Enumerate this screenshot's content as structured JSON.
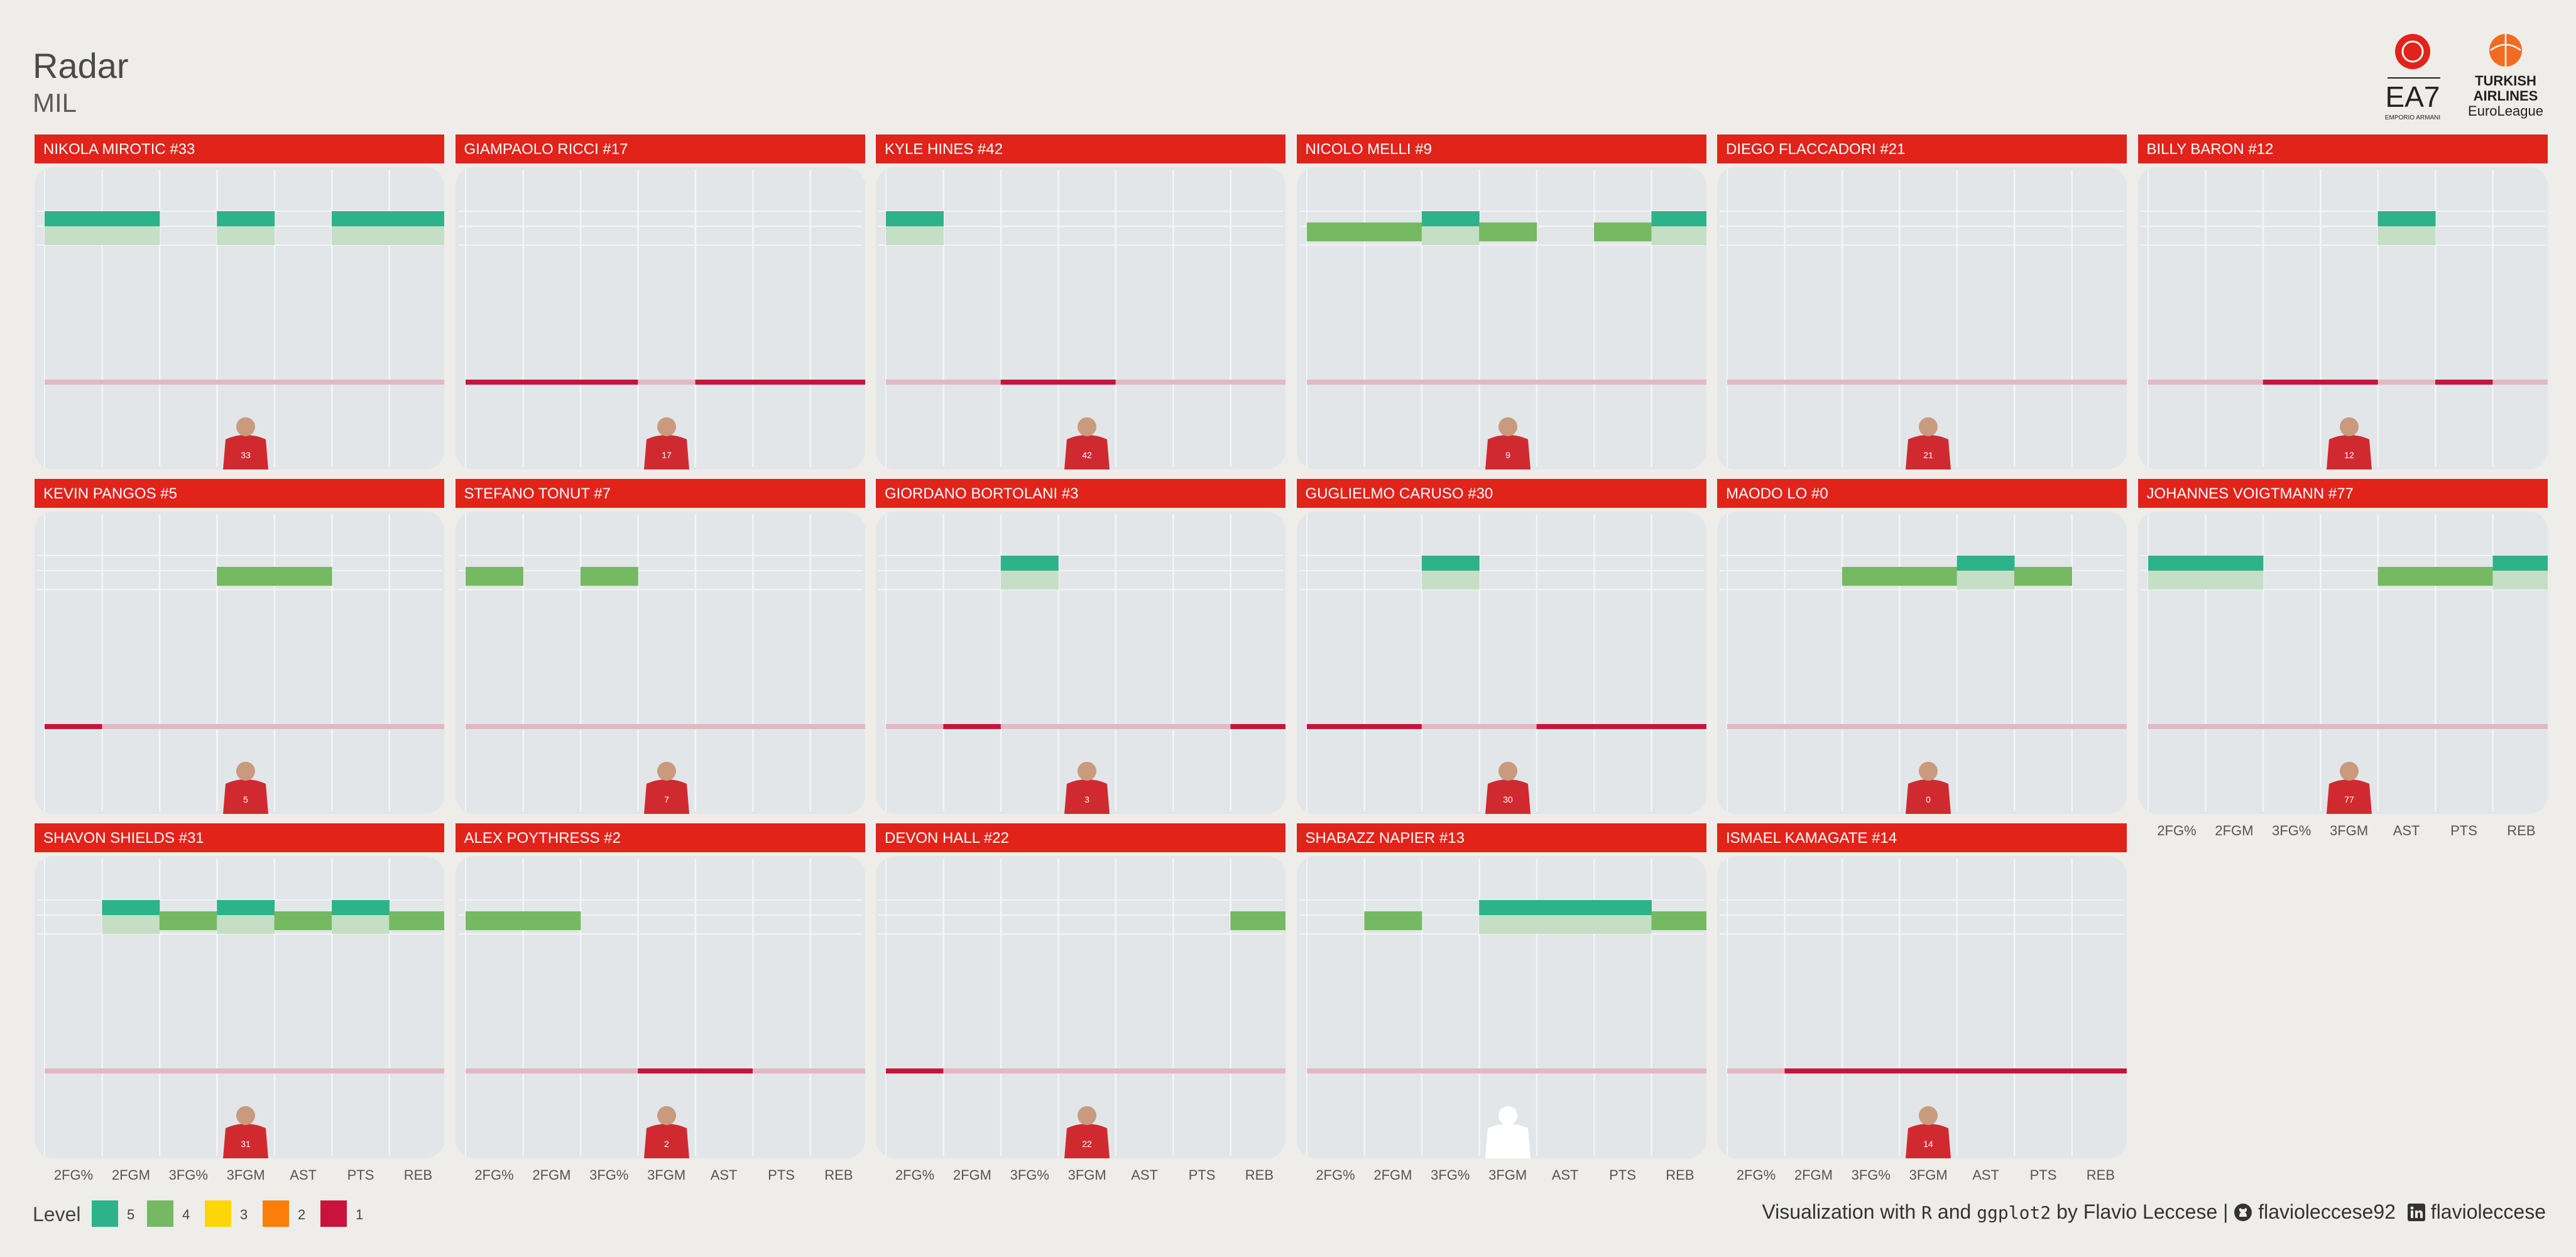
{
  "header": {
    "title": "Radar",
    "subtitle": "MIL"
  },
  "logos": {
    "team_logo_text": "EA7",
    "team_logo_subtext": "EMPORIO ARMANI",
    "league_line1": "TURKISH",
    "league_line2": "AIRLINES",
    "league_line3": "EuroLeague",
    "team_color": "#e2231a",
    "league_color": "#f26b21"
  },
  "colors": {
    "strip": "#e2231a",
    "panel_bg": "#e2e6e8",
    "level_5": "#2db38a",
    "level_4": "#76b963",
    "level_3": "#fdd60a",
    "level_2": "#fb7d0a",
    "level_1": "#c8143c",
    "faded_green": "#c4dfc5",
    "faded_red": "#e3b8c3"
  },
  "chart_data": {
    "type": "heatmap",
    "metrics": [
      "2FG%",
      "2FGM",
      "3FG%",
      "3FGM",
      "AST",
      "PTS",
      "REB"
    ],
    "levels": [
      5,
      4,
      3,
      2,
      1
    ],
    "legend_title": "Level",
    "players": [
      {
        "name": "NIKOLA MIROTIC #33",
        "number": "33",
        "levels": [
          5,
          5,
          null,
          5,
          null,
          5,
          5
        ]
      },
      {
        "name": "GIAMPAOLO RICCI #17",
        "number": "17",
        "levels": [
          1,
          1,
          1,
          null,
          1,
          1,
          1
        ]
      },
      {
        "name": "KYLE HINES #42",
        "number": "42",
        "levels": [
          5,
          null,
          1,
          1,
          null,
          null,
          null
        ]
      },
      {
        "name": "NICOLO MELLI #9",
        "number": "9",
        "levels": [
          4,
          4,
          5,
          4,
          null,
          4,
          5
        ]
      },
      {
        "name": "DIEGO FLACCADORI #21",
        "number": "21",
        "levels": [
          null,
          null,
          null,
          null,
          null,
          null,
          null
        ]
      },
      {
        "name": "BILLY BARON #12",
        "number": "12",
        "levels": [
          null,
          null,
          1,
          1,
          5,
          1,
          null
        ]
      },
      {
        "name": "KEVIN PANGOS #5",
        "number": "5",
        "levels": [
          1,
          null,
          null,
          4,
          4,
          null,
          null
        ]
      },
      {
        "name": "STEFANO TONUT #7",
        "number": "7",
        "levels": [
          4,
          null,
          4,
          null,
          null,
          null,
          null
        ]
      },
      {
        "name": "GIORDANO BORTOLANI #3",
        "number": "3",
        "levels": [
          null,
          1,
          5,
          null,
          null,
          null,
          1
        ]
      },
      {
        "name": "GUGLIELMO CARUSO #30",
        "number": "30",
        "levels": [
          1,
          1,
          5,
          null,
          1,
          1,
          1
        ]
      },
      {
        "name": "MAODO LO #0",
        "number": "0",
        "levels": [
          null,
          null,
          4,
          4,
          5,
          4,
          null
        ]
      },
      {
        "name": "JOHANNES VOIGTMANN #77",
        "number": "77",
        "levels": [
          5,
          5,
          null,
          null,
          4,
          4,
          5
        ]
      },
      {
        "name": "SHAVON SHIELDS #31",
        "number": "31",
        "levels": [
          null,
          5,
          4,
          5,
          4,
          5,
          4
        ]
      },
      {
        "name": "ALEX POYTHRESS #2",
        "number": "2",
        "levels": [
          4,
          4,
          null,
          1,
          1,
          null,
          null
        ]
      },
      {
        "name": "DEVON HALL #22",
        "number": "22",
        "levels": [
          1,
          null,
          null,
          null,
          null,
          null,
          4
        ]
      },
      {
        "name": "SHABAZZ NAPIER #13",
        "number": "13",
        "levels": [
          null,
          4,
          null,
          5,
          5,
          5,
          4
        ]
      },
      {
        "name": "ISMAEL KAMAGATE #14",
        "number": "14",
        "levels": [
          null,
          1,
          1,
          1,
          1,
          1,
          1
        ]
      }
    ]
  },
  "credit": {
    "prefix": "Visualization with ",
    "lang1": "R",
    "and": " and ",
    "lang2": "ggplot2",
    "suffix": " by Flavio Leccese | ",
    "github_icon": "github-icon",
    "github": "flavioleccese92",
    "linkedin_icon": "linkedin-icon",
    "linkedin": "flavioleccese"
  }
}
